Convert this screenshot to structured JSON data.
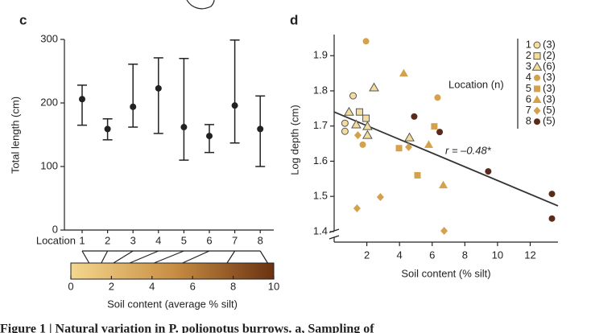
{
  "chart_data": [
    {
      "type": "error_bar",
      "panel": "c",
      "ylabel": "Total length (cm)",
      "xlabel": "Location",
      "categories": [
        "1",
        "2",
        "3",
        "4",
        "5",
        "6",
        "7",
        "8"
      ],
      "values": [
        206,
        159,
        194,
        223,
        162,
        148,
        196,
        159
      ],
      "lower": [
        165,
        142,
        162,
        152,
        110,
        122,
        137,
        100
      ],
      "upper": [
        228,
        175,
        261,
        271,
        270,
        166,
        299,
        211
      ],
      "color": "#222222",
      "ylim": [
        0,
        300
      ],
      "yticks": [
        0,
        100,
        200,
        300
      ],
      "colorbar": {
        "label": "Soil content (average % silt)",
        "xlim": [
          0,
          10
        ],
        "xticks": [
          0,
          2,
          4,
          6,
          8,
          10
        ],
        "colors": [
          "#f4d78e",
          "#c98f45",
          "#6a3210"
        ],
        "location_silt": [
          0.9,
          1.5,
          2.1,
          2.9,
          4.1,
          5.5,
          7.7,
          9.7
        ]
      }
    },
    {
      "type": "scatter",
      "panel": "d",
      "xlabel": "Soil content (% silt)",
      "ylabel": "Log depth (cm)",
      "legend_title": "Location (n)",
      "annotation": "r = –0.48*",
      "xlim": [
        0,
        13.7
      ],
      "xticks": [
        2,
        4,
        6,
        8,
        10,
        12
      ],
      "ylim": [
        1.37,
        1.96
      ],
      "yticks": [
        1.4,
        1.5,
        1.6,
        1.7,
        1.8,
        1.9
      ],
      "trend": {
        "x": [
          0,
          13.7
        ],
        "y": [
          1.74,
          1.473
        ],
        "color": "#333333"
      },
      "series": [
        {
          "name": "1",
          "n": "(3)",
          "marker": "circle",
          "color": "#f3dd9c",
          "stroke": "#555555",
          "x": [
            0.66,
            1.16,
            0.66
          ],
          "values": [
            1.708,
            1.786,
            1.685
          ]
        },
        {
          "name": "2",
          "n": "(2)",
          "marker": "square",
          "color": "#f3dd9c",
          "stroke": "#555555",
          "x": [
            1.55,
            1.95
          ],
          "values": [
            1.74,
            1.722
          ]
        },
        {
          "name": "3",
          "n": "(6)",
          "marker": "triangle",
          "color": "#f3dd9c",
          "stroke": "#555555",
          "x": [
            0.91,
            1.35,
            2.04,
            2.04,
            2.44,
            4.61
          ],
          "values": [
            1.74,
            1.704,
            1.699,
            1.674,
            1.809,
            1.667
          ]
        },
        {
          "name": "4",
          "n": "(3)",
          "marker": "circle",
          "color": "#d4a24c",
          "stroke": "none",
          "x": [
            1.95,
            1.75,
            6.33
          ],
          "values": [
            1.941,
            1.647,
            1.781
          ]
        },
        {
          "name": "5",
          "n": "(3)",
          "marker": "square",
          "color": "#d4a24c",
          "stroke": "none",
          "x": [
            3.97,
            5.1,
            6.13
          ],
          "values": [
            1.637,
            1.56,
            1.699
          ]
        },
        {
          "name": "6",
          "n": "(3)",
          "marker": "triangle",
          "color": "#d4a24c",
          "stroke": "none",
          "x": [
            4.26,
            5.79,
            6.68
          ],
          "values": [
            1.85,
            1.647,
            1.532
          ]
        },
        {
          "name": "7",
          "n": "(5)",
          "marker": "diamond",
          "color": "#d4a24c",
          "stroke": "none",
          "x": [
            1.45,
            4.56,
            2.83,
            1.4,
            6.73
          ],
          "values": [
            1.674,
            1.64,
            1.498,
            1.466,
            1.402
          ]
        },
        {
          "name": "8",
          "n": "(5)",
          "marker": "circle",
          "color": "#5a2a1a",
          "stroke": "none",
          "x": [
            4.9,
            6.46,
            9.43,
            13.33,
            13.33
          ],
          "values": [
            1.727,
            1.683,
            1.571,
            1.507,
            1.437
          ]
        }
      ]
    }
  ],
  "caption": "Figure 1 | Natural variation in P. polionotus burrows. a, Sampling of"
}
